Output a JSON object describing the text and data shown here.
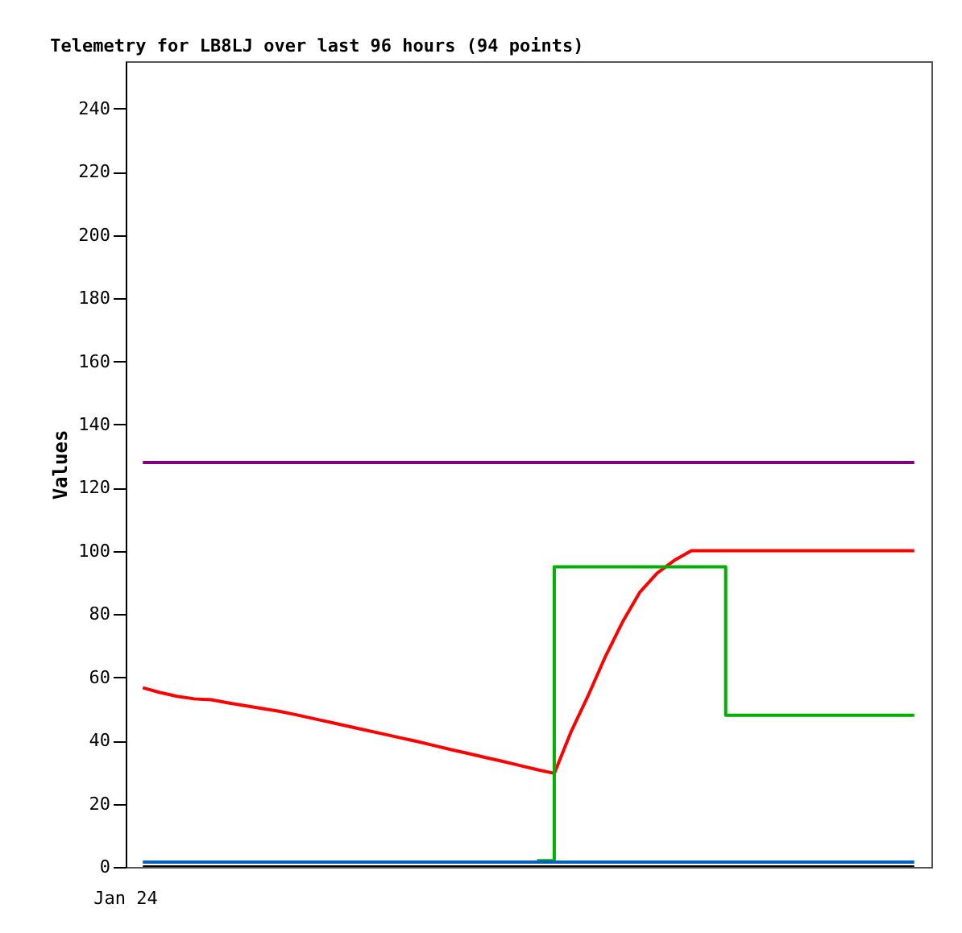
{
  "chart_data": {
    "type": "line",
    "title": "Telemetry for LB8LJ over last 96 hours (94 points)",
    "ylabel": "Values",
    "annotations": [
      "Jan 24"
    ],
    "ylim": [
      0,
      255
    ],
    "yticks": [
      0,
      20,
      40,
      60,
      80,
      100,
      120,
      140,
      160,
      180,
      200,
      220,
      240
    ],
    "grid": false,
    "marker": "none",
    "line_style": "solid",
    "categories": [
      null,
      null,
      null,
      null,
      null,
      null,
      null,
      null,
      null,
      null,
      null,
      null,
      null,
      null,
      null,
      null,
      null,
      null,
      null,
      null,
      null,
      null,
      null,
      null,
      null,
      null,
      null,
      null,
      null,
      null,
      null,
      null,
      null,
      null,
      null,
      null,
      null,
      null,
      null,
      null,
      null,
      null,
      null,
      null,
      null,
      null
    ],
    "series": [
      {
        "color": "#800080",
        "values": [
          128,
          128,
          128,
          128,
          128,
          128,
          128,
          128,
          128,
          128,
          128,
          128,
          128,
          128,
          128,
          128,
          128,
          128,
          128,
          128,
          128,
          128,
          128,
          128,
          128,
          128,
          128,
          128,
          128,
          128,
          128,
          128,
          128,
          128,
          128,
          128,
          128,
          128,
          128,
          128,
          128,
          128,
          128,
          128,
          128,
          128
        ]
      },
      {
        "color": "#ff0000",
        "values": [
          56.7,
          55.2,
          54.0,
          53.2,
          52.9,
          51.9,
          51.0,
          50.1,
          49.2,
          48.1,
          46.9,
          45.7,
          44.5,
          43.3,
          42.1,
          40.9,
          39.7,
          38.4,
          37.1,
          35.9,
          34.6,
          33.4,
          32.1,
          30.8,
          29.6,
          43,
          54.5,
          66.8,
          77.7,
          87,
          93,
          97,
          100.1,
          100.1,
          100.1,
          100.1,
          100.1,
          100.1,
          100.1,
          100.1,
          100.1,
          100.1,
          100.1,
          100.1,
          100.1,
          100.1
        ]
      },
      {
        "color": "#00b000",
        "type": "step",
        "values": [
          null,
          null,
          null,
          null,
          null,
          null,
          null,
          null,
          null,
          null,
          null,
          null,
          null,
          null,
          null,
          null,
          null,
          null,
          null,
          null,
          null,
          null,
          null,
          2,
          95,
          95,
          95,
          95,
          95,
          95,
          95,
          95,
          95,
          95,
          48,
          48,
          48,
          48,
          48,
          48,
          48,
          48,
          48,
          48,
          48,
          48
        ]
      },
      {
        "color": "#0060c0",
        "values": [
          1.5,
          1.5,
          1.5,
          1.5,
          1.5,
          1.5,
          1.5,
          1.5,
          1.5,
          1.5,
          1.5,
          1.5,
          1.5,
          1.5,
          1.5,
          1.5,
          1.5,
          1.5,
          1.5,
          1.5,
          1.5,
          1.5,
          1.5,
          1.5,
          1.5,
          1.5,
          1.5,
          1.5,
          1.5,
          1.5,
          1.5,
          1.5,
          1.5,
          1.5,
          1.5,
          1.5,
          1.5,
          1.5,
          1.5,
          1.5,
          1.5,
          1.5,
          1.5,
          1.5,
          1.5,
          1.5
        ]
      },
      {
        "color": "#000000",
        "values": [
          0,
          0,
          0,
          0,
          0,
          0,
          0,
          0,
          0,
          0,
          0,
          0,
          0,
          0,
          0,
          0,
          0,
          0,
          0,
          0,
          0,
          0,
          0,
          0,
          0,
          0,
          0,
          0,
          0,
          0,
          0,
          0,
          0,
          0,
          0,
          0,
          0,
          0,
          0,
          0,
          0,
          0,
          0,
          0,
          0,
          0
        ]
      }
    ]
  }
}
